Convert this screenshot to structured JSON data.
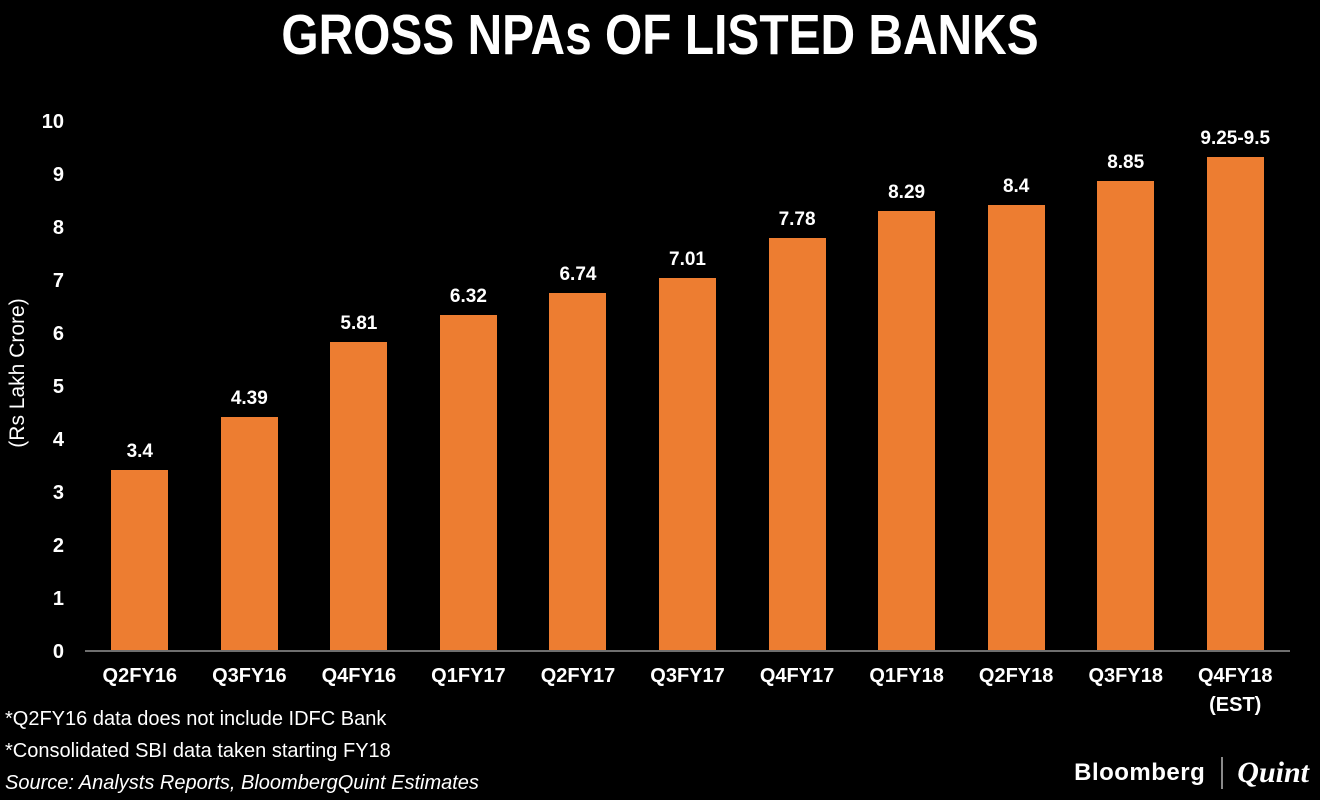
{
  "title": "GROSS NPAs OF LISTED BANKS",
  "chart_data": {
    "type": "bar",
    "title": "GROSS NPAs OF LISTED BANKS",
    "xlabel": "",
    "ylabel": "(Rs Lakh Crore)",
    "ylim": [
      0,
      10
    ],
    "yticks": [
      0,
      1,
      2,
      3,
      4,
      5,
      6,
      7,
      8,
      9,
      10
    ],
    "grid": false,
    "legend": false,
    "bar_color": "#ed7d31",
    "categories": [
      "Q2FY16",
      "Q3FY16",
      "Q4FY16",
      "Q1FY17",
      "Q2FY17",
      "Q3FY17",
      "Q4FY17",
      "Q1FY18",
      "Q2FY18",
      "Q3FY18",
      "Q4FY18"
    ],
    "category_notes": [
      "",
      "",
      "",
      "",
      "",
      "",
      "",
      "",
      "",
      "",
      "(EST)"
    ],
    "values": [
      3.4,
      4.39,
      5.81,
      6.32,
      6.74,
      7.01,
      7.78,
      8.29,
      8.4,
      8.85,
      9.3
    ],
    "value_labels": [
      "3.4",
      "4.39",
      "5.81",
      "6.32",
      "6.74",
      "7.01",
      "7.78",
      "8.29",
      "8.4",
      "8.85",
      "9.25-9.5"
    ]
  },
  "footnotes": {
    "line1": "*Q2FY16 data does not include IDFC Bank",
    "line2": "*Consolidated SBI data taken starting FY18",
    "source": "Source: Analysts Reports, BloombergQuint Estimates"
  },
  "brand": {
    "bloomberg": "Bloomberg",
    "quint": "Quint"
  },
  "colors": {
    "background": "#000000",
    "text": "#ffffff",
    "bar": "#ed7d31",
    "axis_line": "#6e6e6e",
    "brand_divider": "#8a8a8a"
  }
}
